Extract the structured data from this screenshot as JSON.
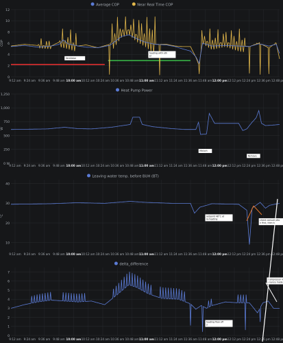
{
  "dashboard": {
    "background": "#161719",
    "grid": "#2a2d31",
    "text": "#aab0b7"
  },
  "x_ticks": [
    "9:12 am",
    "9:24 am",
    "9:36 am",
    "9:48 am",
    "10:00 am",
    "10:12 am",
    "10:24 am",
    "10:36 am",
    "10:48 am",
    "11:00 am",
    "11:12 am",
    "11:24 am",
    "11:36 am",
    "11:48 am",
    "12:00 pm",
    "12:12 pm",
    "12:24 pm",
    "12:36 pm",
    "12:48 pm"
  ],
  "x_ticks_bold": [
    "10:00 am",
    "11:00 am",
    "12:00 pm"
  ],
  "chart_data": [
    {
      "type": "line",
      "legend": [
        {
          "name": "Average COP",
          "color": "#5b7bd5"
        },
        {
          "name": "Near Real Time COP",
          "color": "#e2b74b"
        }
      ],
      "y_ticks": [
        "0",
        "2",
        "4",
        "6",
        "8",
        "10",
        "12"
      ],
      "ylim": [
        0,
        12
      ],
      "ylabel": "COP",
      "series": [
        {
          "name": "Average COP",
          "color": "#5b7bd5",
          "anchors": [
            [
              0,
              5.4
            ],
            [
              20,
              5.6
            ],
            [
              40,
              5.3
            ],
            [
              60,
              5.5
            ],
            [
              72,
              5.8
            ],
            [
              78,
              6.6
            ],
            [
              85,
              5.9
            ],
            [
              100,
              5.5
            ],
            [
              112,
              5.3
            ],
            [
              130,
              5.2
            ],
            [
              147,
              5.6
            ],
            [
              152,
              6.0
            ],
            [
              165,
              7.2
            ],
            [
              176,
              7.5
            ],
            [
              188,
              6.8
            ],
            [
              200,
              6.2
            ],
            [
              215,
              5.8
            ],
            [
              232,
              5.7
            ],
            [
              245,
              5.4
            ],
            [
              256,
              5.0
            ],
            [
              268,
              4.6
            ],
            [
              276,
              3.6
            ],
            [
              281,
              2.4
            ],
            [
              286,
              6.0
            ],
            [
              300,
              5.5
            ],
            [
              320,
              5.6
            ],
            [
              340,
              5.5
            ],
            [
              356,
              5.4
            ],
            [
              370,
              5.9
            ],
            [
              385,
              5.5
            ],
            [
              396,
              5.8
            ],
            [
              401,
              4.2
            ]
          ]
        },
        {
          "name": "Near Real Time COP",
          "color": "#e2b74b",
          "anchors": [
            [
              0,
              5.5
            ],
            [
              20,
              5.8
            ],
            [
              40,
              5.6
            ],
            [
              60,
              5.5
            ],
            [
              72,
              6.2
            ],
            [
              85,
              5.9
            ],
            [
              100,
              5.5
            ],
            [
              112,
              5.7
            ],
            [
              130,
              5.2
            ],
            [
              147,
              5.8
            ],
            [
              165,
              8.0
            ],
            [
              176,
              8.4
            ],
            [
              188,
              7.4
            ],
            [
              200,
              6.8
            ],
            [
              215,
              5.8
            ],
            [
              232,
              5.8
            ],
            [
              245,
              5.5
            ],
            [
              256,
              5.4
            ],
            [
              268,
              5.4
            ],
            [
              276,
              3.5
            ],
            [
              281,
              2.0
            ],
            [
              286,
              6.6
            ],
            [
              300,
              5.8
            ],
            [
              320,
              6.2
            ],
            [
              340,
              5.6
            ],
            [
              356,
              5.4
            ],
            [
              370,
              6.0
            ],
            [
              385,
              5.2
            ],
            [
              396,
              6.0
            ],
            [
              401,
              3.2
            ]
          ],
          "oscillating_ranges": [
            [
              40,
              60,
              7.0
            ],
            [
              72,
              98,
              8.6
            ],
            [
              150,
              215,
              10.8
            ],
            [
              284,
              350,
              8.6
            ],
            [
              360,
              398,
              5.5
            ]
          ],
          "dips": [
            [
              147,
              0.4
            ],
            [
              222,
              0.3
            ],
            [
              281,
              0.5
            ],
            [
              356,
              0.6
            ],
            [
              372,
              0.4
            ],
            [
              385,
              0.5
            ]
          ]
        }
      ],
      "annotations": [
        "Ventilator",
        "heating with other"
      ],
      "reference_lines": [
        {
          "color": "#e02f2f",
          "from_x": 0,
          "to_x": 140,
          "y": 2.2
        },
        {
          "color": "#38b547",
          "from_x": 145,
          "to_x": 268,
          "y": 2.9
        }
      ]
    },
    {
      "type": "line",
      "legend": [
        {
          "name": "Heat Pump Power",
          "color": "#5b7bd5"
        }
      ],
      "y_ticks": [
        "0 W",
        "250",
        "500",
        "750",
        "1,000",
        "1,250"
      ],
      "ylim": [
        0,
        1250
      ],
      "ylabel": "W",
      "series": [
        {
          "name": "Heat Pump Power",
          "color": "#5b7bd5",
          "anchors": [
            [
              0,
              610
            ],
            [
              30,
              615
            ],
            [
              55,
              620
            ],
            [
              80,
              650
            ],
            [
              100,
              625
            ],
            [
              120,
              620
            ],
            [
              150,
              650
            ],
            [
              178,
              700
            ],
            [
              182,
              830
            ],
            [
              192,
              830
            ],
            [
              196,
              700
            ],
            [
              212,
              660
            ],
            [
              240,
              625
            ],
            [
              260,
              610
            ],
            [
              276,
              610
            ],
            [
              280,
              740
            ],
            [
              283,
              520
            ],
            [
              292,
              530
            ],
            [
              296,
              900
            ],
            [
              304,
              720
            ],
            [
              340,
              720
            ],
            [
              346,
              590
            ],
            [
              352,
              620
            ],
            [
              360,
              740
            ],
            [
              366,
              820
            ],
            [
              370,
              950
            ],
            [
              374,
              720
            ],
            [
              380,
              680
            ],
            [
              392,
              690
            ],
            [
              401,
              700
            ]
          ]
        }
      ],
      "annotations": [
        "Maluch",
        "Remove"
      ]
    },
    {
      "type": "line",
      "legend": [
        {
          "name": "Leaving water temp. before BUH (BT)",
          "color": "#5b7bd5"
        }
      ],
      "y_ticks": [
        "10",
        "20",
        "30",
        "40"
      ],
      "ylim": [
        5,
        42
      ],
      "ylabel": "°C",
      "series": [
        {
          "name": "Leaving water temp. before BUH (BT)",
          "color": "#5b7bd5",
          "anchors": [
            [
              0,
              29.5
            ],
            [
              60,
              29.8
            ],
            [
              98,
              30.3
            ],
            [
              140,
              30.0
            ],
            [
              178,
              31.0
            ],
            [
              200,
              30.5
            ],
            [
              240,
              30.0
            ],
            [
              268,
              30.0
            ],
            [
              274,
              25.0
            ],
            [
              282,
              28.0
            ],
            [
              300,
              29.8
            ],
            [
              340,
              29.5
            ],
            [
              352,
              26.5
            ],
            [
              356,
              9.0
            ],
            [
              360,
              27.5
            ],
            [
              372,
              30.5
            ],
            [
              380,
              27.5
            ],
            [
              386,
              29.0
            ],
            [
              401,
              30.0
            ]
          ]
        }
      ],
      "annotations": [
        "setpoint 48°C at re-heating",
        "check consumption first, then target temperature"
      ]
    },
    {
      "type": "line",
      "legend": [
        {
          "name": "delta_difference",
          "color": "#5b7bd5"
        }
      ],
      "y_ticks": [
        "0",
        "1",
        "2",
        "3",
        "4",
        "5",
        "6",
        "7"
      ],
      "ylim": [
        0,
        7.5
      ],
      "ylabel": "",
      "series": [
        {
          "name": "delta_difference",
          "color": "#5b7bd5",
          "anchors": [
            [
              0,
              3.0
            ],
            [
              20,
              3.4
            ],
            [
              40,
              3.7
            ],
            [
              60,
              3.9
            ],
            [
              80,
              3.8
            ],
            [
              100,
              3.7
            ],
            [
              120,
              3.8
            ],
            [
              140,
              3.4
            ],
            [
              160,
              4.6
            ],
            [
              176,
              5.6
            ],
            [
              188,
              5.3
            ],
            [
              205,
              4.6
            ],
            [
              225,
              4.1
            ],
            [
              250,
              4.0
            ],
            [
              268,
              3.5
            ],
            [
              276,
              2.9
            ],
            [
              284,
              3.3
            ],
            [
              292,
              3.0
            ],
            [
              300,
              3.3
            ],
            [
              320,
              3.7
            ],
            [
              340,
              3.6
            ],
            [
              356,
              3.6
            ],
            [
              368,
              2.5
            ],
            [
              376,
              3.6
            ],
            [
              384,
              3.8
            ],
            [
              392,
              3.0
            ],
            [
              401,
              3.0
            ]
          ],
          "oscillating_ranges": [
            [
              28,
              60,
              1.3
            ],
            [
              75,
              110,
              1.1
            ],
            [
              150,
              210,
              1.4
            ],
            [
              220,
              262,
              0.6
            ],
            [
              292,
              300,
              1.0
            ],
            [
              336,
              354,
              1.0
            ]
          ],
          "dips": [
            [
              268,
              1.1
            ],
            [
              286,
              0.4
            ],
            [
              350,
              0.6
            ],
            [
              372,
              1.5
            ]
          ]
        }
      ],
      "annotations": [
        "heating flow off 2",
        "Compressor maintenance mode"
      ]
    }
  ],
  "hover": {
    "arrow_color": "#e0742a",
    "arrow_color_white": "#ffffff"
  }
}
